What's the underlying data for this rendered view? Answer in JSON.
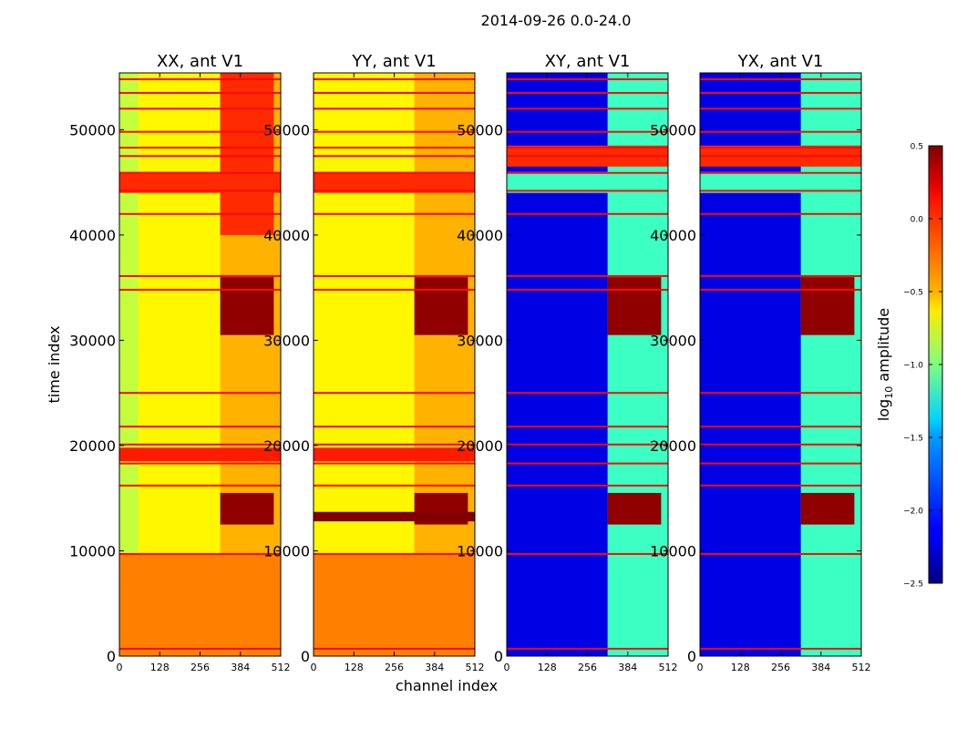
{
  "chart_data": {
    "type": "heatmap",
    "suptitle": "2014-09-26 0.0-24.0",
    "xlabel": "channel index",
    "ylabel": "time index",
    "x_range": [
      0,
      512
    ],
    "y_range": [
      0,
      55400
    ],
    "x_ticks": [
      0,
      128,
      256,
      384,
      512
    ],
    "y_ticks": [
      0,
      10000,
      20000,
      30000,
      40000,
      50000
    ],
    "colorbar": {
      "label_prefix": "log",
      "label_sub": "10",
      "label_suffix": " amplitude",
      "range": [
        -2.5,
        0.5
      ],
      "ticks": [
        0.5,
        0.0,
        -0.5,
        -1.0,
        -1.5,
        -2.0,
        -2.5
      ],
      "tick_labels": [
        "0.5",
        "0.0",
        "−0.5",
        "−1.0",
        "−1.5",
        "−2.0",
        "−2.5"
      ],
      "colormap": "jet"
    },
    "panels": [
      {
        "title": "XX, ant V1",
        "blocks": [
          {
            "x0": 0,
            "x1": 512,
            "y0": 0,
            "y1": 9700,
            "value": -0.25
          },
          {
            "x0": 0,
            "x1": 512,
            "y0": 9700,
            "y1": 55400,
            "value": -0.6
          },
          {
            "x0": 0,
            "x1": 60,
            "y0": 9700,
            "y1": 55400,
            "value": -0.8
          },
          {
            "x0": 320,
            "x1": 512,
            "y0": 9700,
            "y1": 55400,
            "value": -0.4
          }
        ],
        "features": [
          {
            "x0": 320,
            "x1": 490,
            "y0": 30500,
            "y1": 36000,
            "value": 0.45
          },
          {
            "x0": 320,
            "x1": 490,
            "y0": 12500,
            "y1": 15500,
            "value": 0.45
          },
          {
            "x0": 320,
            "x1": 490,
            "y0": 40000,
            "y1": 55400,
            "value": 0.0
          },
          {
            "x0": 0,
            "x1": 512,
            "y0": 18500,
            "y1": 19800,
            "value": 0.05
          },
          {
            "x0": 0,
            "x1": 512,
            "y0": 44000,
            "y1": 46000,
            "value": 0.0
          }
        ]
      },
      {
        "title": "YY, ant V1",
        "blocks": [
          {
            "x0": 0,
            "x1": 512,
            "y0": 0,
            "y1": 9700,
            "value": -0.25
          },
          {
            "x0": 0,
            "x1": 512,
            "y0": 9700,
            "y1": 55400,
            "value": -0.6
          },
          {
            "x0": 320,
            "x1": 512,
            "y0": 9700,
            "y1": 55400,
            "value": -0.4
          }
        ],
        "features": [
          {
            "x0": 320,
            "x1": 490,
            "y0": 30500,
            "y1": 36000,
            "value": 0.45
          },
          {
            "x0": 320,
            "x1": 490,
            "y0": 12500,
            "y1": 15500,
            "value": 0.45
          },
          {
            "x0": 0,
            "x1": 512,
            "y0": 12800,
            "y1": 13700,
            "value": 0.5
          },
          {
            "x0": 0,
            "x1": 512,
            "y0": 18500,
            "y1": 19800,
            "value": 0.05
          },
          {
            "x0": 0,
            "x1": 512,
            "y0": 44000,
            "y1": 46000,
            "value": 0.0
          }
        ]
      },
      {
        "title": "XY, ant V1",
        "blocks": [
          {
            "x0": 0,
            "x1": 512,
            "y0": 0,
            "y1": 55400,
            "value": -2.2
          },
          {
            "x0": 320,
            "x1": 512,
            "y0": 0,
            "y1": 55400,
            "value": -1.2
          }
        ],
        "features": [
          {
            "x0": 320,
            "x1": 490,
            "y0": 30500,
            "y1": 36000,
            "value": 0.45
          },
          {
            "x0": 320,
            "x1": 490,
            "y0": 12500,
            "y1": 15500,
            "value": 0.45
          },
          {
            "x0": 0,
            "x1": 512,
            "y0": 44000,
            "y1": 46000,
            "value": -1.2
          },
          {
            "x0": 0,
            "x1": 512,
            "y0": 46500,
            "y1": 48500,
            "value": 0.0
          }
        ]
      },
      {
        "title": "YX, ant V1",
        "blocks": [
          {
            "x0": 0,
            "x1": 512,
            "y0": 0,
            "y1": 55400,
            "value": -2.2
          },
          {
            "x0": 320,
            "x1": 512,
            "y0": 0,
            "y1": 55400,
            "value": -1.2
          }
        ],
        "features": [
          {
            "x0": 320,
            "x1": 490,
            "y0": 30500,
            "y1": 36000,
            "value": 0.45
          },
          {
            "x0": 320,
            "x1": 490,
            "y0": 12500,
            "y1": 15500,
            "value": 0.45
          },
          {
            "x0": 0,
            "x1": 512,
            "y0": 44000,
            "y1": 46000,
            "value": -1.2
          },
          {
            "x0": 0,
            "x1": 512,
            "y0": 46500,
            "y1": 48500,
            "value": 0.0
          }
        ]
      }
    ],
    "flag_rows": [
      700,
      9700,
      16200,
      18300,
      20100,
      21800,
      25000,
      34800,
      36100,
      42000,
      44200,
      45900,
      47500,
      48300,
      49800,
      52000,
      53500,
      54800
    ]
  }
}
